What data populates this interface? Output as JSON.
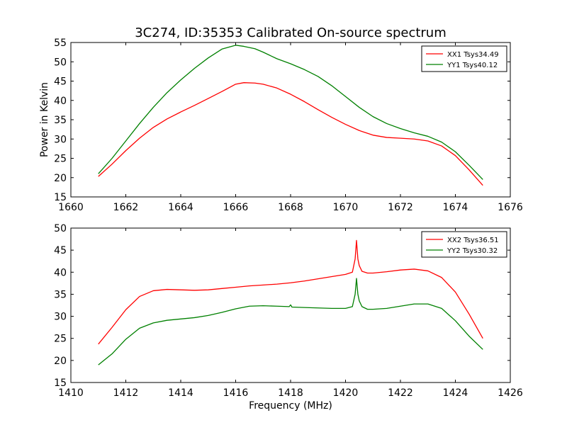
{
  "title": "3C274, ID:35353 Calibrated On-source spectrum",
  "chart_data": [
    {
      "type": "line",
      "xlabel": "",
      "ylabel": "Power in Kelvin",
      "xlim": [
        1660,
        1676
      ],
      "ylim": [
        15,
        55
      ],
      "xticks": [
        1660,
        1662,
        1664,
        1666,
        1668,
        1670,
        1672,
        1674,
        1676
      ],
      "yticks": [
        15,
        20,
        25,
        30,
        35,
        40,
        45,
        50,
        55
      ],
      "legend_position": "top-right",
      "series": [
        {
          "name": "XX1 Tsys34.49",
          "color": "#ff0000",
          "points": [
            [
              1661.0,
              20.3
            ],
            [
              1661.5,
              23.5
            ],
            [
              1662.0,
              27.0
            ],
            [
              1662.5,
              30.2
            ],
            [
              1663.0,
              33.0
            ],
            [
              1663.5,
              35.2
            ],
            [
              1664.0,
              37.0
            ],
            [
              1664.5,
              38.7
            ],
            [
              1665.0,
              40.5
            ],
            [
              1665.5,
              42.3
            ],
            [
              1666.0,
              44.2
            ],
            [
              1666.3,
              44.6
            ],
            [
              1666.7,
              44.5
            ],
            [
              1667.0,
              44.2
            ],
            [
              1667.5,
              43.2
            ],
            [
              1668.0,
              41.6
            ],
            [
              1668.5,
              39.7
            ],
            [
              1669.0,
              37.6
            ],
            [
              1669.5,
              35.6
            ],
            [
              1670.0,
              33.8
            ],
            [
              1670.5,
              32.2
            ],
            [
              1671.0,
              31.0
            ],
            [
              1671.5,
              30.4
            ],
            [
              1672.0,
              30.2
            ],
            [
              1672.5,
              30.0
            ],
            [
              1673.0,
              29.5
            ],
            [
              1673.5,
              28.2
            ],
            [
              1674.0,
              25.7
            ],
            [
              1674.5,
              22.0
            ],
            [
              1675.0,
              18.0
            ]
          ]
        },
        {
          "name": "YY1 Tsys40.12",
          "color": "#008000",
          "points": [
            [
              1661.0,
              21.0
            ],
            [
              1661.5,
              25.0
            ],
            [
              1662.0,
              29.5
            ],
            [
              1662.5,
              34.0
            ],
            [
              1663.0,
              38.2
            ],
            [
              1663.5,
              42.0
            ],
            [
              1664.0,
              45.3
            ],
            [
              1664.5,
              48.3
            ],
            [
              1665.0,
              51.0
            ],
            [
              1665.5,
              53.3
            ],
            [
              1666.0,
              54.3
            ],
            [
              1666.3,
              54.0
            ],
            [
              1666.7,
              53.4
            ],
            [
              1667.0,
              52.5
            ],
            [
              1667.5,
              50.8
            ],
            [
              1668.0,
              49.5
            ],
            [
              1668.5,
              48.0
            ],
            [
              1669.0,
              46.2
            ],
            [
              1669.5,
              43.8
            ],
            [
              1670.0,
              41.0
            ],
            [
              1670.5,
              38.2
            ],
            [
              1671.0,
              35.8
            ],
            [
              1671.5,
              34.0
            ],
            [
              1672.0,
              32.7
            ],
            [
              1672.5,
              31.6
            ],
            [
              1673.0,
              30.7
            ],
            [
              1673.5,
              29.2
            ],
            [
              1674.0,
              26.7
            ],
            [
              1674.5,
              23.2
            ],
            [
              1675.0,
              19.5
            ]
          ]
        }
      ]
    },
    {
      "type": "line",
      "xlabel": "Frequency (MHz)",
      "ylabel": "",
      "xlim": [
        1410,
        1426
      ],
      "ylim": [
        15,
        50
      ],
      "xticks": [
        1410,
        1412,
        1414,
        1416,
        1418,
        1420,
        1422,
        1424,
        1426
      ],
      "yticks": [
        15,
        20,
        25,
        30,
        35,
        40,
        45,
        50
      ],
      "legend_position": "top-right",
      "series": [
        {
          "name": "XX2 Tsys36.51",
          "color": "#ff0000",
          "points": [
            [
              1411.0,
              23.7
            ],
            [
              1411.5,
              27.5
            ],
            [
              1412.0,
              31.5
            ],
            [
              1412.5,
              34.5
            ],
            [
              1413.0,
              35.8
            ],
            [
              1413.5,
              36.1
            ],
            [
              1414.0,
              36.0
            ],
            [
              1414.5,
              35.9
            ],
            [
              1415.0,
              36.0
            ],
            [
              1415.5,
              36.3
            ],
            [
              1416.0,
              36.6
            ],
            [
              1416.5,
              36.9
            ],
            [
              1417.0,
              37.1
            ],
            [
              1417.5,
              37.3
            ],
            [
              1418.0,
              37.6
            ],
            [
              1418.5,
              38.0
            ],
            [
              1419.0,
              38.5
            ],
            [
              1419.5,
              39.0
            ],
            [
              1420.0,
              39.5
            ],
            [
              1420.25,
              40.0
            ],
            [
              1420.35,
              43.0
            ],
            [
              1420.4,
              47.2
            ],
            [
              1420.45,
              43.0
            ],
            [
              1420.5,
              41.5
            ],
            [
              1420.6,
              40.2
            ],
            [
              1420.8,
              39.8
            ],
            [
              1421.0,
              39.8
            ],
            [
              1421.5,
              40.1
            ],
            [
              1422.0,
              40.5
            ],
            [
              1422.5,
              40.7
            ],
            [
              1423.0,
              40.3
            ],
            [
              1423.5,
              38.8
            ],
            [
              1424.0,
              35.5
            ],
            [
              1424.5,
              30.5
            ],
            [
              1425.0,
              25.0
            ]
          ]
        },
        {
          "name": "YY2 Tsys30.32",
          "color": "#008000",
          "points": [
            [
              1411.0,
              19.0
            ],
            [
              1411.5,
              21.5
            ],
            [
              1412.0,
              24.8
            ],
            [
              1412.5,
              27.3
            ],
            [
              1413.0,
              28.5
            ],
            [
              1413.5,
              29.1
            ],
            [
              1414.0,
              29.4
            ],
            [
              1414.5,
              29.7
            ],
            [
              1415.0,
              30.2
            ],
            [
              1415.5,
              30.9
            ],
            [
              1416.0,
              31.7
            ],
            [
              1416.5,
              32.3
            ],
            [
              1417.0,
              32.4
            ],
            [
              1417.5,
              32.3
            ],
            [
              1417.95,
              32.2
            ],
            [
              1418.0,
              32.6
            ],
            [
              1418.05,
              32.1
            ],
            [
              1418.5,
              32.0
            ],
            [
              1419.0,
              31.9
            ],
            [
              1419.5,
              31.8
            ],
            [
              1420.0,
              31.8
            ],
            [
              1420.25,
              32.2
            ],
            [
              1420.35,
              35.0
            ],
            [
              1420.4,
              38.6
            ],
            [
              1420.45,
              35.0
            ],
            [
              1420.5,
              33.5
            ],
            [
              1420.6,
              32.2
            ],
            [
              1420.8,
              31.6
            ],
            [
              1421.0,
              31.6
            ],
            [
              1421.5,
              31.8
            ],
            [
              1422.0,
              32.3
            ],
            [
              1422.5,
              32.8
            ],
            [
              1423.0,
              32.8
            ],
            [
              1423.5,
              31.8
            ],
            [
              1424.0,
              29.0
            ],
            [
              1424.5,
              25.5
            ],
            [
              1425.0,
              22.5
            ]
          ]
        }
      ]
    }
  ]
}
